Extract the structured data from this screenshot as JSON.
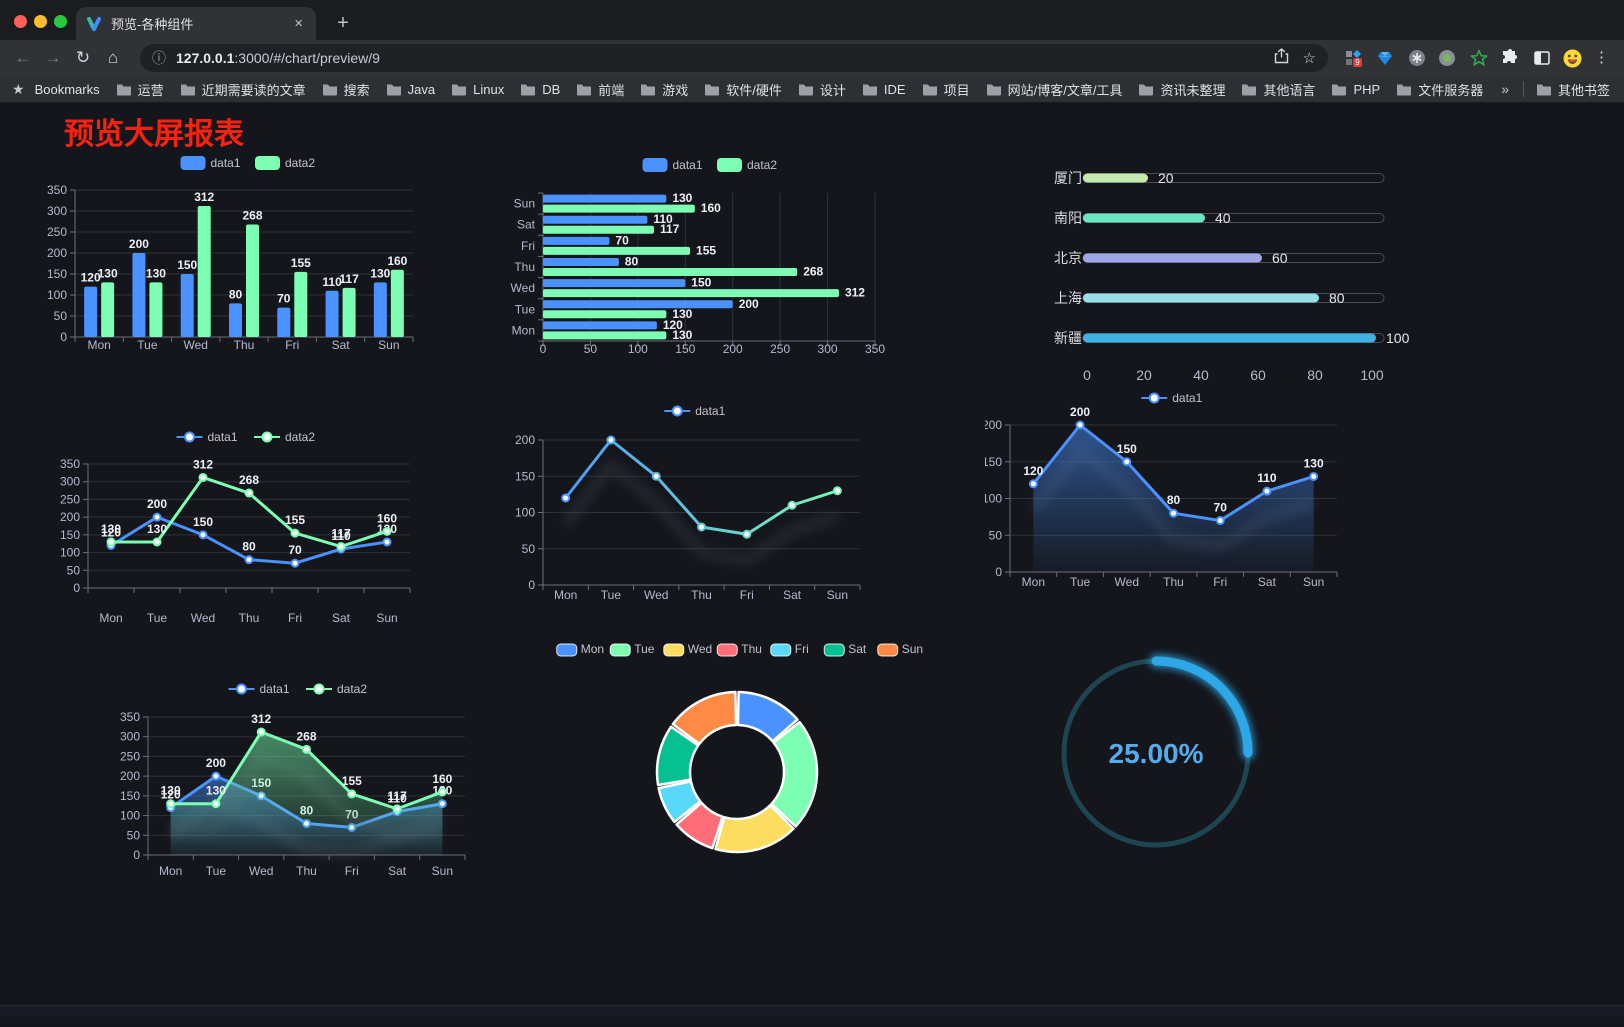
{
  "browser": {
    "tab_title": "预览-各种组件",
    "tab_close": "×",
    "new_tab": "+",
    "back": "←",
    "forward": "→",
    "reload": "↻",
    "home": "⌂",
    "url_info": "ⓘ",
    "url_host": "127.0.0.1",
    "url_rest": ":3000/#/chart/preview/9",
    "star": "☆",
    "menu": "⋮",
    "extension_badge": "9",
    "bookmarks_label": "Bookmarks",
    "bookmarks": [
      "运营",
      "近期需要读的文章",
      "搜索",
      "Java",
      "Linux",
      "DB",
      "前端",
      "游戏",
      "软件/硬件",
      "设计",
      "IDE",
      "项目",
      "网站/博客/文章/工具",
      "资讯未整理",
      "其他语言",
      "PHP",
      "文件服务器"
    ],
    "overflow_chevron": "»",
    "other_bookmarks": "其他书签"
  },
  "page": {
    "title": "预览大屏报表"
  },
  "chart_data": [
    {
      "id": "grouped-bar",
      "type": "bar",
      "categories": [
        "Mon",
        "Tue",
        "Wed",
        "Thu",
        "Fri",
        "Sat",
        "Sun"
      ],
      "series": [
        {
          "name": "data1",
          "color": "#4992ff",
          "values": [
            120,
            200,
            150,
            80,
            70,
            110,
            130
          ]
        },
        {
          "name": "data2",
          "color": "#7cffb2",
          "values": [
            130,
            130,
            312,
            268,
            155,
            117,
            160
          ]
        }
      ],
      "ylim": [
        0,
        350
      ],
      "yticks": [
        0,
        50,
        100,
        150,
        200,
        250,
        300,
        350
      ],
      "legend_position": "top",
      "grid": true,
      "value_labels": true
    },
    {
      "id": "grouped-hbar",
      "type": "bar-horizontal",
      "categories": [
        "Mon",
        "Tue",
        "Wed",
        "Thu",
        "Fri",
        "Sat",
        "Sun"
      ],
      "series": [
        {
          "name": "data1",
          "color": "#4992ff",
          "values": [
            120,
            200,
            150,
            80,
            70,
            110,
            130
          ]
        },
        {
          "name": "data2",
          "color": "#7cffb2",
          "values": [
            130,
            130,
            312,
            268,
            155,
            117,
            160
          ]
        }
      ],
      "xlim": [
        0,
        350
      ],
      "xticks": [
        0,
        50,
        100,
        150,
        200,
        250,
        300,
        350
      ],
      "legend_position": "top",
      "grid": true,
      "value_labels": true
    },
    {
      "id": "city-progress",
      "type": "progress-bars",
      "categories": [
        "厦门",
        "南阳",
        "北京",
        "上海",
        "新疆"
      ],
      "values": [
        20,
        40,
        60,
        80,
        100
      ],
      "colors": [
        "#c4ebad",
        "#6be6c1",
        "#a0a7e6",
        "#96dee8",
        "#3fb1e3"
      ],
      "xlim": [
        0,
        100
      ],
      "xticks": [
        0,
        20,
        40,
        60,
        80,
        100
      ],
      "value_labels": true
    },
    {
      "id": "two-line",
      "type": "line",
      "categories": [
        "Mon",
        "Tue",
        "Wed",
        "Thu",
        "Fri",
        "Sat",
        "Sun"
      ],
      "series": [
        {
          "name": "data1",
          "color": "#4992ff",
          "values": [
            120,
            200,
            150,
            80,
            70,
            110,
            130
          ]
        },
        {
          "name": "data2",
          "color": "#7cffb2",
          "values": [
            130,
            130,
            312,
            268,
            155,
            117,
            160
          ]
        }
      ],
      "ylim": [
        0,
        350
      ],
      "yticks": [
        0,
        50,
        100,
        150,
        200,
        250,
        300,
        350
      ],
      "legend_position": "top",
      "grid": true,
      "value_labels": true
    },
    {
      "id": "gradient-line",
      "type": "line",
      "categories": [
        "Mon",
        "Tue",
        "Wed",
        "Thu",
        "Fri",
        "Sat",
        "Sun"
      ],
      "series": [
        {
          "name": "data1",
          "gradient": [
            "#4992ff",
            "#7cffb2"
          ],
          "values": [
            120,
            200,
            150,
            80,
            70,
            110,
            130
          ]
        }
      ],
      "ylim": [
        0,
        200
      ],
      "yticks": [
        0,
        50,
        100,
        150,
        200
      ],
      "legend_position": "top",
      "grid": true,
      "value_labels": false,
      "shadow": true
    },
    {
      "id": "area-line",
      "type": "area",
      "categories": [
        "Mon",
        "Tue",
        "Wed",
        "Thu",
        "Fri",
        "Sat",
        "Sun"
      ],
      "series": [
        {
          "name": "data1",
          "color": "#4992ff",
          "values": [
            120,
            200,
            150,
            80,
            70,
            110,
            130
          ]
        }
      ],
      "ylim": [
        0,
        200
      ],
      "yticks": [
        0,
        50,
        100,
        150,
        200
      ],
      "legend_position": "top",
      "grid": true,
      "value_labels": true,
      "shadow": true
    },
    {
      "id": "two-area",
      "type": "area",
      "categories": [
        "Mon",
        "Tue",
        "Wed",
        "Thu",
        "Fri",
        "Sat",
        "Sun"
      ],
      "series": [
        {
          "name": "data1",
          "color": "#4992ff",
          "values": [
            120,
            200,
            150,
            80,
            70,
            110,
            130
          ]
        },
        {
          "name": "data2",
          "color": "#7cffb2",
          "values": [
            130,
            130,
            312,
            268,
            155,
            117,
            160
          ]
        }
      ],
      "ylim": [
        0,
        350
      ],
      "yticks": [
        0,
        50,
        100,
        150,
        200,
        250,
        300,
        350
      ],
      "legend_position": "top",
      "grid": true,
      "value_labels": true,
      "shadow": true
    },
    {
      "id": "weekday-donut",
      "type": "pie",
      "categories": [
        "Mon",
        "Tue",
        "Wed",
        "Thu",
        "Fri",
        "Sat",
        "Sun"
      ],
      "values": [
        120,
        200,
        150,
        80,
        70,
        110,
        130
      ],
      "colors": [
        "#4992ff",
        "#7cffb2",
        "#fddd60",
        "#ff6e76",
        "#58d9f9",
        "#05c091",
        "#ff8a45"
      ],
      "legend_position": "top",
      "inner_radius_ratio": 0.59
    },
    {
      "id": "progress-gauge",
      "type": "gauge",
      "value": 25,
      "max": 100,
      "label": "25.00%",
      "progress_color": "#2ea7e6",
      "track_color": "#1e4652",
      "text_color": "#54aced"
    }
  ]
}
